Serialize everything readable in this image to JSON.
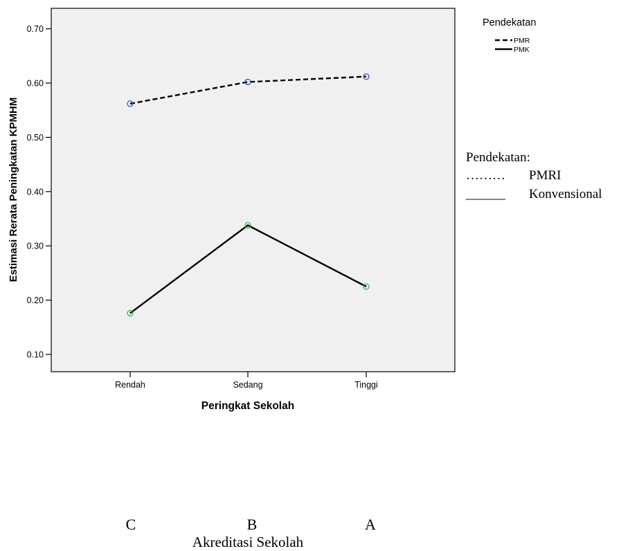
{
  "chart_data": {
    "type": "line",
    "categories": [
      "Rendah",
      "Sedang",
      "Tinggi"
    ],
    "xlabel": "Peringkat Sekolah",
    "ylabel": "Estimasi Rerata Peningkatan KPMHM",
    "yticks": [
      "0.10",
      "0.20",
      "0.30",
      "0.40",
      "0.50",
      "0.60",
      "0.70"
    ],
    "ylim": [
      0.07,
      0.75
    ],
    "grid": false,
    "legend_position": "top-right",
    "legend_title": "Pendekatan",
    "series": [
      {
        "name": "PMR",
        "values": [
          0.562,
          0.602,
          0.612
        ],
        "line_style": "dashed",
        "marker_color": "#3a56c8"
      },
      {
        "name": "PMK",
        "values": [
          0.176,
          0.338,
          0.225
        ],
        "line_style": "solid",
        "marker_color": "#2fb84a"
      }
    ],
    "plot_background": "#f0f0f0"
  },
  "annotations": {
    "legend_title": "Pendekatan:",
    "items": [
      {
        "symbol": "………",
        "label": "PMRI"
      },
      {
        "symbol": "______",
        "label": "Konvensional"
      }
    ],
    "accreditation_labels": [
      "C",
      "B",
      "A"
    ],
    "accreditation_title": "Akreditasi Sekolah"
  }
}
